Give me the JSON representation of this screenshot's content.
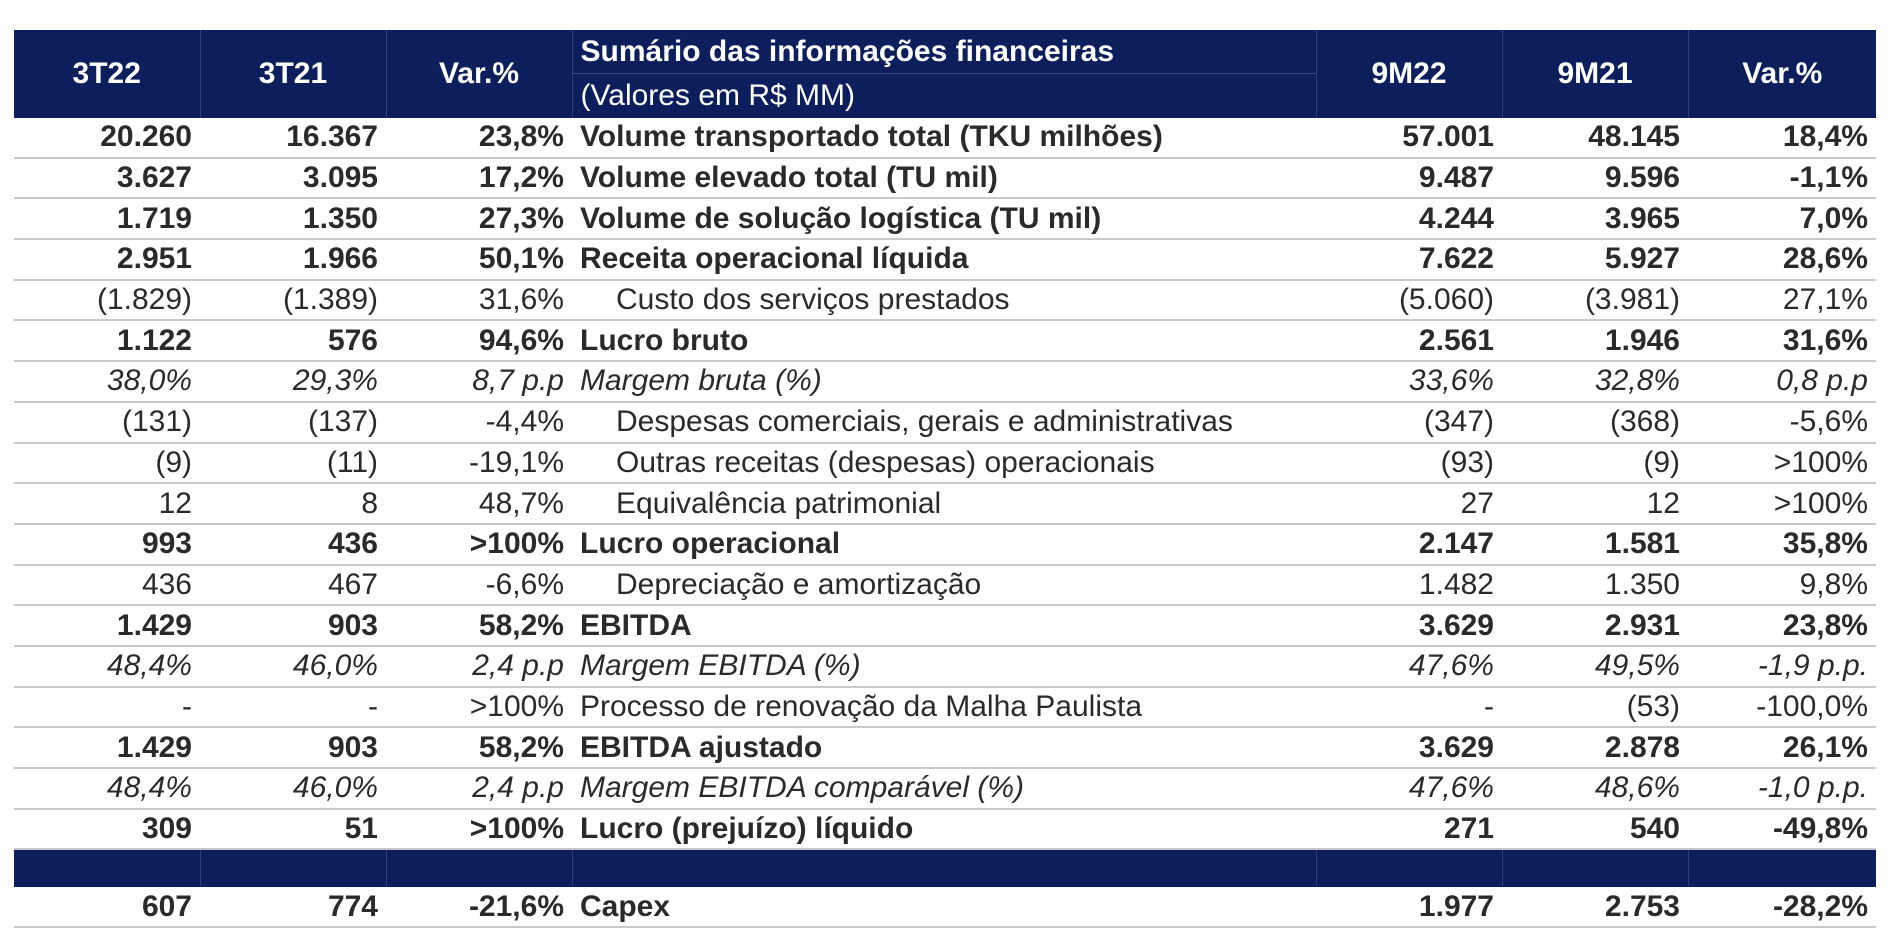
{
  "header": {
    "col_3t22": "3T22",
    "col_3t21": "3T21",
    "col_var_q": "Var.%",
    "title": "Sumário das informações financeiras",
    "subtitle": "(Valores em R$ MM)",
    "col_9m22": "9M22",
    "col_9m21": "9M21",
    "col_var_9m": "Var.%"
  },
  "rows": [
    {
      "name": "volume-transportado",
      "style": "bold",
      "indent": false,
      "cells": [
        "20.260",
        "16.367",
        "23,8%",
        "Volume transportado total (TKU milhões)",
        "57.001",
        "48.145",
        "18,4%"
      ]
    },
    {
      "name": "volume-elevado",
      "style": "bold",
      "indent": false,
      "cells": [
        "3.627",
        "3.095",
        "17,2%",
        "Volume elevado total (TU mil)",
        "9.487",
        "9.596",
        "-1,1%"
      ]
    },
    {
      "name": "volume-solucao-logistica",
      "style": "bold",
      "indent": false,
      "cells": [
        "1.719",
        "1.350",
        "27,3%",
        "Volume de solução logística (TU mil)",
        "4.244",
        "3.965",
        "7,0%"
      ]
    },
    {
      "name": "receita-operacional-liquida",
      "style": "bold",
      "indent": false,
      "cells": [
        "2.951",
        "1.966",
        "50,1%",
        "Receita operacional líquida",
        "7.622",
        "5.927",
        "28,6%"
      ]
    },
    {
      "name": "custo-servicos",
      "style": "normal",
      "indent": true,
      "cells": [
        "(1.829)",
        "(1.389)",
        "31,6%",
        "Custo dos serviços prestados",
        "(5.060)",
        "(3.981)",
        "27,1%"
      ]
    },
    {
      "name": "lucro-bruto",
      "style": "bold",
      "indent": false,
      "cells": [
        "1.122",
        "576",
        "94,6%",
        "Lucro bruto",
        "2.561",
        "1.946",
        "31,6%"
      ]
    },
    {
      "name": "margem-bruta",
      "style": "italic",
      "indent": false,
      "cells": [
        "38,0%",
        "29,3%",
        "8,7  p.p",
        "Margem bruta (%)",
        "33,6%",
        "32,8%",
        "0,8  p.p"
      ]
    },
    {
      "name": "despesas-comerciais",
      "style": "normal",
      "indent": true,
      "cells": [
        "(131)",
        "(137)",
        "-4,4%",
        "Despesas comerciais, gerais e administrativas",
        "(347)",
        "(368)",
        "-5,6%"
      ]
    },
    {
      "name": "outras-receitas",
      "style": "normal",
      "indent": true,
      "cells": [
        "(9)",
        "(11)",
        "-19,1%",
        "Outras receitas (despesas) operacionais",
        "(93)",
        "(9)",
        ">100%"
      ]
    },
    {
      "name": "equivalencia-patrimonial",
      "style": "normal",
      "indent": true,
      "cells": [
        "12",
        "8",
        "48,7%",
        "Equivalência patrimonial",
        "27",
        "12",
        ">100%"
      ]
    },
    {
      "name": "lucro-operacional",
      "style": "bold",
      "indent": false,
      "cells": [
        "993",
        "436",
        ">100%",
        "Lucro operacional",
        "2.147",
        "1.581",
        "35,8%"
      ]
    },
    {
      "name": "depreciacao",
      "style": "normal",
      "indent": true,
      "cells": [
        "436",
        "467",
        "-6,6%",
        "Depreciação e amortização",
        "1.482",
        "1.350",
        "9,8%"
      ]
    },
    {
      "name": "ebitda",
      "style": "bold",
      "indent": false,
      "cells": [
        "1.429",
        "903",
        "58,2%",
        "EBITDA",
        "3.629",
        "2.931",
        "23,8%"
      ]
    },
    {
      "name": "margem-ebitda",
      "style": "italic",
      "indent": false,
      "cells": [
        "48,4%",
        "46,0%",
        "2,4  p.p",
        "Margem EBITDA (%)",
        "47,6%",
        "49,5%",
        "-1,9 p.p."
      ]
    },
    {
      "name": "processo-renovacao",
      "style": "normal",
      "indent": false,
      "cells": [
        "-",
        "-",
        ">100%",
        "Processo de renovação da Malha Paulista",
        "-",
        "(53)",
        "-100,0%"
      ]
    },
    {
      "name": "ebitda-ajustado",
      "style": "bold",
      "indent": false,
      "cells": [
        "1.429",
        "903",
        "58,2%",
        "EBITDA ajustado",
        "3.629",
        "2.878",
        "26,1%"
      ]
    },
    {
      "name": "margem-ebitda-comparavel",
      "style": "italic",
      "indent": false,
      "cells": [
        "48,4%",
        "46,0%",
        "2,4  p.p",
        "Margem EBITDA comparável (%)",
        "47,6%",
        "48,6%",
        "-1,0 p.p."
      ]
    },
    {
      "name": "lucro-liquido",
      "style": "bold",
      "indent": false,
      "cells": [
        "309",
        "51",
        ">100%",
        "Lucro (prejuízo) líquido",
        "271",
        "540",
        "-49,8%"
      ]
    }
  ],
  "capex": {
    "style": "bold",
    "cells": [
      "607",
      "774",
      "-21,6%",
      "Capex",
      "1.977",
      "2.753",
      "-28,2%"
    ]
  }
}
